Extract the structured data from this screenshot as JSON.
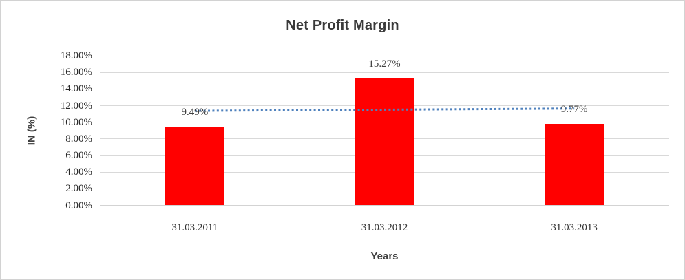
{
  "window": {
    "background": "#ffffff",
    "border_color": "#d2d2d2"
  },
  "chart_data": {
    "type": "bar",
    "title": "Net Profit Margin",
    "xlabel": "Years",
    "ylabel": "IN (%)",
    "categories": [
      "31.03.2011",
      "31.03.2012",
      "31.03.2013"
    ],
    "series": [
      {
        "name": "Net Profit Margin",
        "color": "#ff0000",
        "values": [
          9.49,
          15.27,
          9.77
        ],
        "data_labels": [
          "9.49%",
          "15.27%",
          "9.77%"
        ]
      }
    ],
    "trendline": {
      "type": "linear",
      "style": "dotted",
      "color": "#4f81bd",
      "endpoint_values": [
        11.37,
        11.65
      ]
    },
    "ylim": [
      0,
      18
    ],
    "ytick_step": 2,
    "ytick_labels": [
      "0.00%",
      "2.00%",
      "4.00%",
      "6.00%",
      "8.00%",
      "10.00%",
      "12.00%",
      "14.00%",
      "16.00%",
      "18.00%"
    ],
    "grid": true,
    "legend": "none",
    "colors": {
      "gridline": "#d9d9d9",
      "baseline": "#d3d3d3",
      "title_text": "#3a3a3a",
      "axis_title_text": "#3f3f3f",
      "tick_text": "#262626",
      "data_label_text": "#404040"
    }
  }
}
